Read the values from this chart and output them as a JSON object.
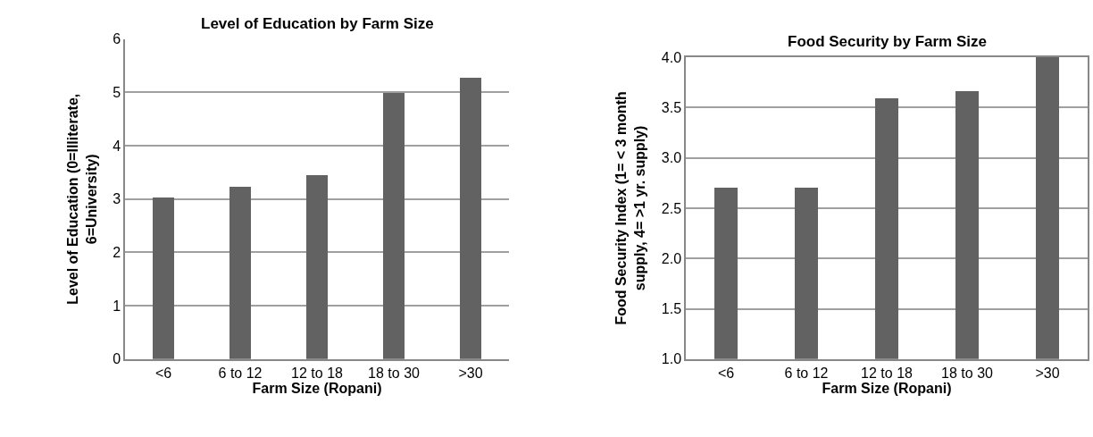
{
  "chart_data": [
    {
      "type": "bar",
      "title": "Level of Education by Farm Size",
      "xlabel": "Farm Size (Ropani)",
      "ylabel": "Level of Education (0=Illiterate,\n6=University)",
      "categories": [
        "<6",
        "6 to 12",
        "12 to 18",
        "18 to 30",
        ">30"
      ],
      "values": [
        3.04,
        3.23,
        3.46,
        5.0,
        5.28
      ],
      "color": "#626262",
      "ylim": [
        0,
        6
      ],
      "yticks": [
        0,
        1,
        2,
        3,
        4,
        5,
        6
      ],
      "grid": "y"
    },
    {
      "type": "bar",
      "title": "Food Security by Farm Size",
      "xlabel": "Farm Size (Ropani)",
      "ylabel": "Food Security Index (1= < 3 month\nsupply, 4= >1 yr. supply)",
      "categories": [
        "<6",
        "6 to 12",
        "12 to 18",
        "18 to 30",
        ">30"
      ],
      "values": [
        2.7,
        2.7,
        3.59,
        3.66,
        4.0
      ],
      "color": "#626262",
      "ylim": [
        1,
        4
      ],
      "yticks": [
        {
          "value": 1,
          "label": "1.0"
        },
        {
          "value": 1.5,
          "label": "1.5"
        },
        {
          "value": 2,
          "label": "2.0"
        },
        {
          "value": 2.5,
          "label": "2.5"
        },
        {
          "value": 3,
          "label": "3.0"
        },
        {
          "value": 3.5,
          "label": "3.5"
        },
        {
          "value": 4,
          "label": "4.0"
        }
      ],
      "grid": "y"
    }
  ]
}
